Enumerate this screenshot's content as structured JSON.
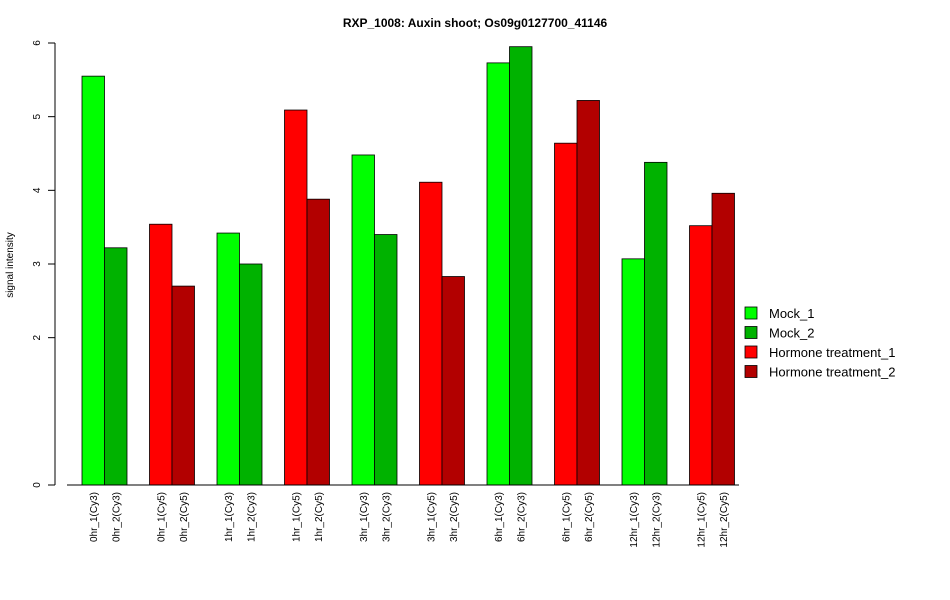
{
  "chart_data": {
    "type": "bar",
    "title": "RXP_1008: Auxin shoot; Os09g0127700_41146",
    "xlabel": "",
    "ylabel": "signal intensity",
    "ylim": [
      0,
      6
    ],
    "yticks": [
      0,
      2,
      3,
      4,
      5,
      6
    ],
    "grid": false,
    "legend_position": "right",
    "categories": [
      "0hr_1(Cy3)",
      "0hr_2(Cy3)",
      "0hr_1(Cy5)",
      "0hr_2(Cy5)",
      "1hr_1(Cy3)",
      "1hr_2(Cy3)",
      "1hr_1(Cy5)",
      "1hr_2(Cy5)",
      "3hr_1(Cy3)",
      "3hr_2(Cy3)",
      "3hr_1(Cy5)",
      "3hr_2(Cy5)",
      "6hr_1(Cy3)",
      "6hr_2(Cy3)",
      "6hr_1(Cy5)",
      "6hr_2(Cy5)",
      "12hr_1(Cy3)",
      "12hr_2(Cy3)",
      "12hr_1(Cy5)",
      "12hr_2(Cy5)"
    ],
    "values": [
      5.55,
      3.22,
      3.54,
      2.7,
      3.42,
      3.0,
      5.09,
      3.88,
      4.48,
      3.4,
      4.11,
      2.83,
      5.73,
      5.95,
      4.64,
      5.22,
      3.07,
      4.38,
      3.52,
      3.96
    ],
    "groups": [
      "Mock_1",
      "Mock_2",
      "Hormone treatment_1",
      "Hormone treatment_2",
      "Mock_1",
      "Mock_2",
      "Hormone treatment_1",
      "Hormone treatment_2",
      "Mock_1",
      "Mock_2",
      "Hormone treatment_1",
      "Hormone treatment_2",
      "Mock_1",
      "Mock_2",
      "Hormone treatment_1",
      "Hormone treatment_2",
      "Mock_1",
      "Mock_2",
      "Hormone treatment_1",
      "Hormone treatment_2"
    ],
    "legend": [
      {
        "name": "Mock_1",
        "color": "#00ff00"
      },
      {
        "name": "Mock_2",
        "color": "#00b200"
      },
      {
        "name": "Hormone treatment_1",
        "color": "#ff0000"
      },
      {
        "name": "Hormone treatment_2",
        "color": "#b20000"
      }
    ]
  }
}
